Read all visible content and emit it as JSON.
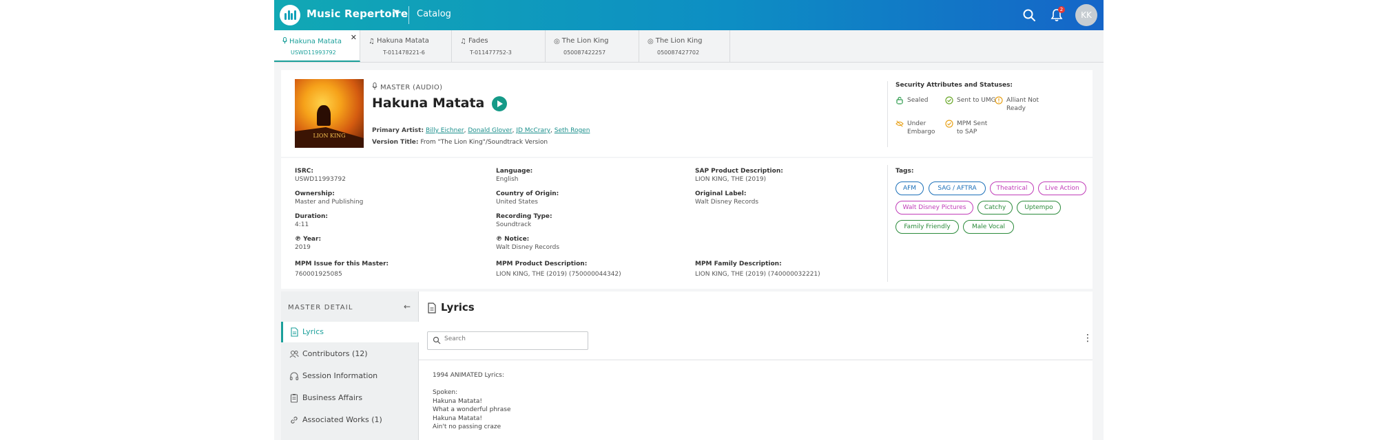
{
  "app": {
    "title": "Music Repertoire",
    "section": "Catalog",
    "notification_count": "2",
    "user_initials": "KK"
  },
  "tabs": [
    {
      "title": "Hakuna Matata",
      "code": "USWD11993792",
      "icon": "microphone-icon",
      "active": true
    },
    {
      "title": "Hakuna Matata",
      "code": "T-011478221-6",
      "icon": "music-note-icon"
    },
    {
      "title": "Fades",
      "code": "T-011477752-3",
      "icon": "music-note-icon"
    },
    {
      "title": "The Lion King",
      "code": "050087422257",
      "icon": "disc-icon"
    },
    {
      "title": "The Lion King",
      "code": "050087427702",
      "icon": "disc-icon"
    }
  ],
  "header": {
    "type_label": "MASTER (AUDIO)",
    "title": "Hakuna Matata",
    "cover_text": "LION KING",
    "primary_artist_label": "Primary Artist:",
    "artists": [
      "Billy Eichner",
      "Donald Glover",
      "JD McCrary",
      "Seth Rogen"
    ],
    "version_label": "Version Title:",
    "version_value": "From \"The Lion King\"/Soundtrack Version"
  },
  "security": {
    "title": "Security Attributes and Statuses:",
    "items": [
      {
        "label": "Sealed",
        "color": "#2a9a4a"
      },
      {
        "label": "Sent to UMG",
        "color": "#6aa82a"
      },
      {
        "label": "Alliant Not Ready",
        "color": "#e8a21a"
      },
      {
        "label": "Under Embargo",
        "color": "#e8a21a"
      },
      {
        "label": "MPM Sent to SAP",
        "color": "#e8a21a"
      }
    ]
  },
  "details": {
    "isrc": {
      "label": "ISRC:",
      "value": "USWD11993792"
    },
    "ownership": {
      "label": "Ownership:",
      "value": "Master and Publishing"
    },
    "duration": {
      "label": "Duration:",
      "value": "4:11"
    },
    "year": {
      "label": "℗ Year:",
      "value": "2019"
    },
    "language": {
      "label": "Language:",
      "value": "English"
    },
    "country": {
      "label": "Country of Origin:",
      "value": "United States"
    },
    "recording_type": {
      "label": "Recording Type:",
      "value": "Soundtrack"
    },
    "notice": {
      "label": "℗ Notice:",
      "value": "Walt Disney Records"
    },
    "sap_desc": {
      "label": "SAP Product Description:",
      "value": "LION KING, THE (2019)"
    },
    "original_label": {
      "label": "Original Label:",
      "value": "Walt Disney Records"
    },
    "mpm_issue": {
      "label": "MPM Issue for this Master:",
      "value": "760001925085"
    },
    "mpm_product": {
      "label": "MPM Product Description:",
      "value": "LION KING, THE (2019) (750000044342)"
    },
    "mpm_family": {
      "label": "MPM Family Description:",
      "value": "LION KING, THE (2019) (740000032221)"
    }
  },
  "tags": {
    "title": "Tags:",
    "items": [
      {
        "label": "AFM",
        "color": "blue"
      },
      {
        "label": "SAG / AFTRA",
        "color": "blue"
      },
      {
        "label": "Theatrical",
        "color": "pink"
      },
      {
        "label": "Live Action",
        "color": "pink"
      },
      {
        "label": "Walt Disney Pictures",
        "color": "pink"
      },
      {
        "label": "Catchy",
        "color": "green"
      },
      {
        "label": "Uptempo",
        "color": "green"
      },
      {
        "label": "Family Friendly",
        "color": "green"
      },
      {
        "label": "Male Vocal",
        "color": "green"
      }
    ]
  },
  "sidebar": {
    "heading": "MASTER DETAIL",
    "items": [
      {
        "label": "Lyrics",
        "icon": "document-icon",
        "active": true
      },
      {
        "label": "Contributors (12)",
        "icon": "people-icon"
      },
      {
        "label": "Session Information",
        "icon": "headphones-icon"
      },
      {
        "label": "Business Affairs",
        "icon": "clipboard-icon"
      },
      {
        "label": "Associated Works (1)",
        "icon": "link-icon"
      }
    ]
  },
  "lyrics": {
    "title": "Lyrics",
    "search_placeholder": "Search",
    "text": "1994 ANIMATED Lyrics:\n\nSpoken:\nHakuna Matata!\nWhat a wonderful phrase\nHakuna Matata!\nAin't no passing craze"
  }
}
